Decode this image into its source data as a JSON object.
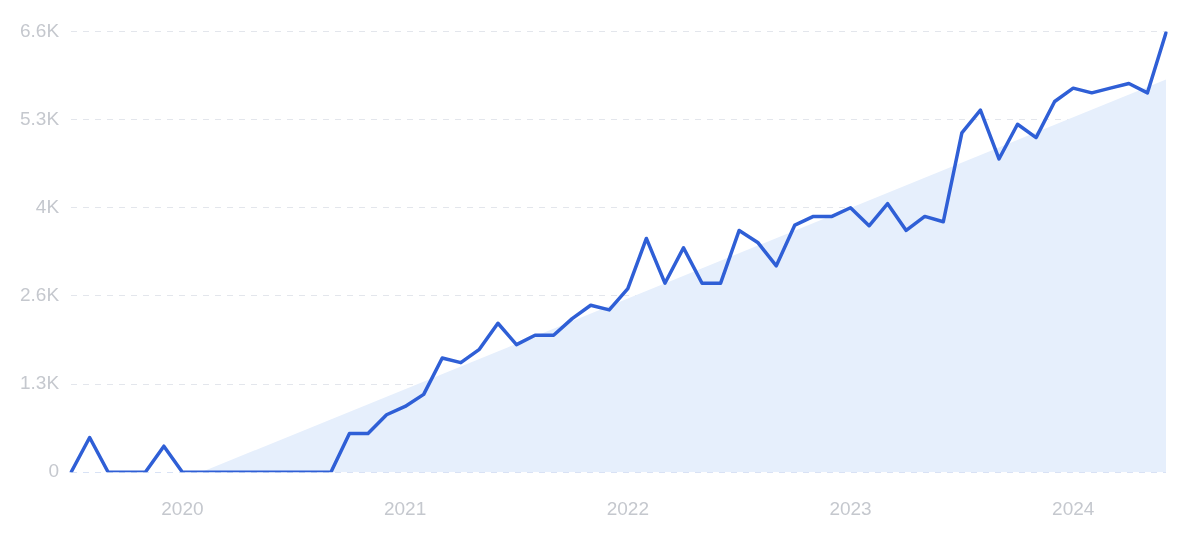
{
  "chart_data": {
    "type": "line",
    "categories": [
      null,
      null,
      null,
      null,
      null,
      null,
      "2020",
      null,
      null,
      null,
      null,
      null,
      null,
      null,
      null,
      null,
      null,
      null,
      "2021",
      null,
      null,
      null,
      null,
      null,
      null,
      null,
      null,
      null,
      null,
      null,
      "2022",
      null,
      null,
      null,
      null,
      null,
      null,
      null,
      null,
      null,
      null,
      null,
      "2023",
      null,
      null,
      null,
      null,
      null,
      null,
      null,
      null,
      null,
      null,
      null,
      "2024",
      null,
      null,
      null,
      null,
      null
    ],
    "series": [
      {
        "color": "#2f5fd6",
        "values": [
          0,
          520,
          0,
          0,
          0,
          390,
          0,
          0,
          0,
          0,
          0,
          0,
          0,
          0,
          0,
          580,
          580,
          860,
          985,
          1165,
          1710,
          1640,
          1840,
          2230,
          1910,
          2050,
          2050,
          2300,
          2500,
          2430,
          2750,
          3500,
          2830,
          3360,
          2830,
          2830,
          3620,
          3440,
          3090,
          3700,
          3830,
          3830,
          3960,
          3690,
          4020,
          3620,
          3830,
          3750,
          5080,
          5420,
          4690,
          5210,
          5010,
          5550,
          5750,
          5680,
          5750,
          5820,
          5680,
          6580
        ]
      },
      {
        "type": "area",
        "color": "#e6effc",
        "values": [
          null,
          null,
          null,
          null,
          null,
          null,
          null,
          0,
          null,
          null,
          null,
          null,
          null,
          null,
          null,
          null,
          null,
          null,
          null,
          null,
          null,
          null,
          null,
          null,
          null,
          null,
          null,
          null,
          null,
          null,
          null,
          null,
          null,
          null,
          null,
          null,
          null,
          null,
          null,
          null,
          null,
          null,
          null,
          null,
          null,
          null,
          null,
          null,
          null,
          null,
          null,
          null,
          null,
          null,
          null,
          null,
          null,
          null,
          null,
          5880
        ]
      }
    ],
    "ylim": [
      0,
      6600
    ],
    "yticks": [
      0,
      {
        "value": 1320,
        "label": "1.3K"
      },
      {
        "value": 2640,
        "label": "2.6K"
      },
      {
        "value": 3960,
        "label": "4K"
      },
      {
        "value": 5280,
        "label": "5.3K"
      },
      {
        "value": 6600,
        "label": "6.6K"
      }
    ],
    "grid": "y",
    "legend": false,
    "marker": "none"
  }
}
